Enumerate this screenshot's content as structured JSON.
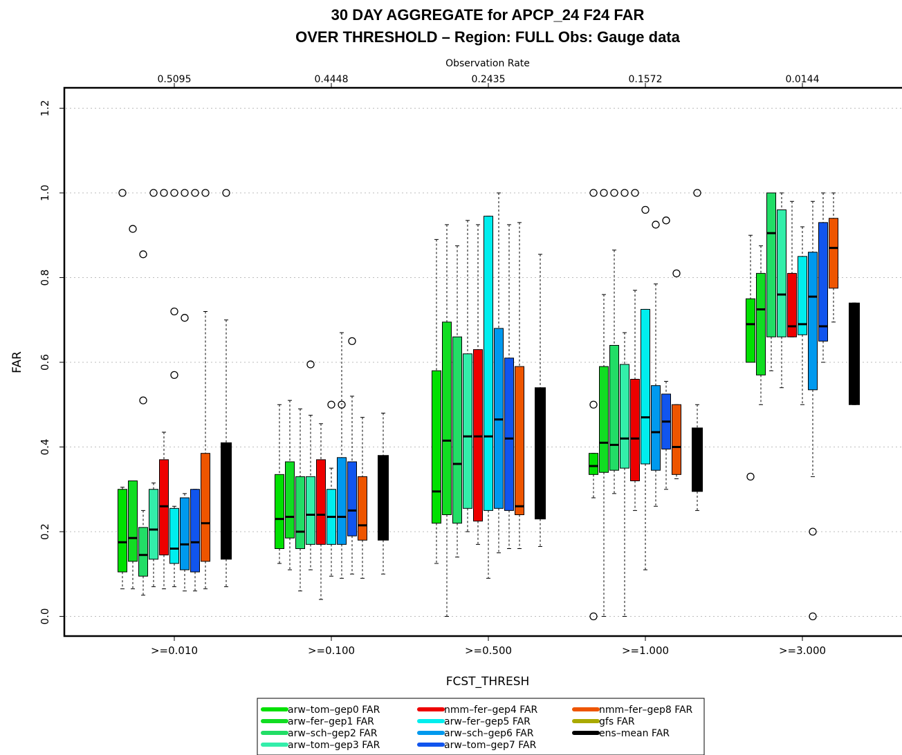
{
  "chart_data": {
    "type": "box",
    "title_line1": "30 DAY AGGREGATE for APCP_24 F24 FAR",
    "title_line2": "OVER THRESHOLD – Region: FULL Obs: Gauge data",
    "xlabel": "FCST_THRESH",
    "ylabel": "FAR",
    "top_axis_label": "Observation Rate",
    "ylim": [
      -0.05,
      1.25
    ],
    "yticks": [
      0.0,
      0.2,
      0.4,
      0.6,
      0.8,
      1.0,
      1.2
    ],
    "ytick_labels": [
      "0.0",
      "0.2",
      "0.4",
      "0.6",
      "0.8",
      "1.0",
      "1.2"
    ],
    "grid": true,
    "legend_position": "bottom",
    "categories": [
      ">=0.010",
      ">=0.100",
      ">=0.500",
      ">=1.000",
      ">=3.000"
    ],
    "observation_rates": [
      "0.5095",
      "0.4448",
      "0.2435",
      "0.1572",
      "0.0144"
    ],
    "series": [
      {
        "name": "arw–tom–gep0 FAR",
        "color": "#00e000",
        "boxes": [
          {
            "whisker_low": 0.065,
            "q1": 0.105,
            "median": 0.175,
            "q3": 0.3,
            "whisker_high": 0.305,
            "outliers": [
              1.0
            ]
          },
          {
            "whisker_low": 0.125,
            "q1": 0.16,
            "median": 0.23,
            "q3": 0.335,
            "whisker_high": 0.5,
            "outliers": []
          },
          {
            "whisker_low": 0.125,
            "q1": 0.22,
            "median": 0.295,
            "q3": 0.58,
            "whisker_high": 0.89,
            "outliers": []
          },
          {
            "whisker_low": 0.28,
            "q1": 0.335,
            "median": 0.355,
            "q3": 0.385,
            "whisker_high": 0.385,
            "outliers": [
              0.0,
              0.5,
              1.0
            ]
          },
          {
            "whisker_low": 0.6,
            "q1": 0.6,
            "median": 0.69,
            "q3": 0.75,
            "whisker_high": 0.9,
            "outliers": [
              0.33
            ]
          }
        ]
      },
      {
        "name": "arw–fer–gep1 FAR",
        "color": "#11dd22",
        "boxes": [
          {
            "whisker_low": 0.065,
            "q1": 0.13,
            "median": 0.185,
            "q3": 0.32,
            "whisker_high": 0.32,
            "outliers": [
              0.915
            ]
          },
          {
            "whisker_low": 0.11,
            "q1": 0.185,
            "median": 0.235,
            "q3": 0.365,
            "whisker_high": 0.51,
            "outliers": []
          },
          {
            "whisker_low": 0.0,
            "q1": 0.24,
            "median": 0.415,
            "q3": 0.695,
            "whisker_high": 0.925,
            "outliers": []
          },
          {
            "whisker_low": 0.0,
            "q1": 0.34,
            "median": 0.41,
            "q3": 0.59,
            "whisker_high": 0.76,
            "outliers": [
              1.0
            ]
          },
          {
            "whisker_low": 0.5,
            "q1": 0.57,
            "median": 0.725,
            "q3": 0.81,
            "whisker_high": 0.875,
            "outliers": []
          }
        ]
      },
      {
        "name": "arw–sch–gep2 FAR",
        "color": "#22dd66",
        "boxes": [
          {
            "whisker_low": 0.05,
            "q1": 0.095,
            "median": 0.145,
            "q3": 0.21,
            "whisker_high": 0.25,
            "outliers": [
              0.51,
              0.855
            ]
          },
          {
            "whisker_low": 0.06,
            "q1": 0.16,
            "median": 0.2,
            "q3": 0.33,
            "whisker_high": 0.49,
            "outliers": []
          },
          {
            "whisker_low": 0.14,
            "q1": 0.22,
            "median": 0.36,
            "q3": 0.66,
            "whisker_high": 0.875,
            "outliers": []
          },
          {
            "whisker_low": 0.29,
            "q1": 0.345,
            "median": 0.405,
            "q3": 0.64,
            "whisker_high": 0.865,
            "outliers": [
              1.0
            ]
          },
          {
            "whisker_low": 0.58,
            "q1": 0.66,
            "median": 0.905,
            "q3": 1.0,
            "whisker_high": 1.0,
            "outliers": []
          }
        ]
      },
      {
        "name": "arw–tom–gep3 FAR",
        "color": "#33eeaa",
        "boxes": [
          {
            "whisker_low": 0.07,
            "q1": 0.135,
            "median": 0.205,
            "q3": 0.3,
            "whisker_high": 0.315,
            "outliers": [
              1.0
            ]
          },
          {
            "whisker_low": 0.11,
            "q1": 0.17,
            "median": 0.24,
            "q3": 0.33,
            "whisker_high": 0.475,
            "outliers": [
              0.595
            ]
          },
          {
            "whisker_low": 0.2,
            "q1": 0.255,
            "median": 0.425,
            "q3": 0.62,
            "whisker_high": 0.935,
            "outliers": []
          },
          {
            "whisker_low": 0.0,
            "q1": 0.35,
            "median": 0.42,
            "q3": 0.595,
            "whisker_high": 0.67,
            "outliers": [
              1.0
            ]
          },
          {
            "whisker_low": 0.54,
            "q1": 0.66,
            "median": 0.76,
            "q3": 0.96,
            "whisker_high": 1.0,
            "outliers": []
          }
        ]
      },
      {
        "name": "nmm–fer–gep4 FAR",
        "color": "#ee0000",
        "boxes": [
          {
            "whisker_low": 0.065,
            "q1": 0.145,
            "median": 0.26,
            "q3": 0.37,
            "whisker_high": 0.435,
            "outliers": [
              1.0
            ]
          },
          {
            "whisker_low": 0.04,
            "q1": 0.17,
            "median": 0.24,
            "q3": 0.37,
            "whisker_high": 0.455,
            "outliers": []
          },
          {
            "whisker_low": 0.17,
            "q1": 0.225,
            "median": 0.425,
            "q3": 0.63,
            "whisker_high": 0.925,
            "outliers": []
          },
          {
            "whisker_low": 0.25,
            "q1": 0.32,
            "median": 0.42,
            "q3": 0.56,
            "whisker_high": 0.77,
            "outliers": [
              1.0
            ]
          },
          {
            "whisker_low": 0.66,
            "q1": 0.66,
            "median": 0.685,
            "q3": 0.81,
            "whisker_high": 0.98,
            "outliers": []
          }
        ]
      },
      {
        "name": "arw–fer–gep5 FAR",
        "color": "#00eeee",
        "boxes": [
          {
            "whisker_low": 0.07,
            "q1": 0.125,
            "median": 0.16,
            "q3": 0.255,
            "whisker_high": 0.26,
            "outliers": [
              0.57,
              0.72,
              1.0
            ]
          },
          {
            "whisker_low": 0.095,
            "q1": 0.17,
            "median": 0.235,
            "q3": 0.3,
            "whisker_high": 0.35,
            "outliers": [
              0.5
            ]
          },
          {
            "whisker_low": 0.09,
            "q1": 0.25,
            "median": 0.425,
            "q3": 0.945,
            "whisker_high": 0.945,
            "outliers": []
          },
          {
            "whisker_low": 0.11,
            "q1": 0.36,
            "median": 0.47,
            "q3": 0.725,
            "whisker_high": 0.725,
            "outliers": [
              0.96
            ]
          },
          {
            "whisker_low": 0.5,
            "q1": 0.665,
            "median": 0.69,
            "q3": 0.85,
            "whisker_high": 0.92,
            "outliers": []
          }
        ]
      },
      {
        "name": "arw–sch–gep6 FAR",
        "color": "#0099ee",
        "boxes": [
          {
            "whisker_low": 0.06,
            "q1": 0.11,
            "median": 0.17,
            "q3": 0.28,
            "whisker_high": 0.29,
            "outliers": [
              0.705,
              1.0
            ]
          },
          {
            "whisker_low": 0.09,
            "q1": 0.17,
            "median": 0.235,
            "q3": 0.375,
            "whisker_high": 0.67,
            "outliers": [
              0.5
            ]
          },
          {
            "whisker_low": 0.15,
            "q1": 0.255,
            "median": 0.465,
            "q3": 0.68,
            "whisker_high": 1.0,
            "outliers": []
          },
          {
            "whisker_low": 0.26,
            "q1": 0.345,
            "median": 0.435,
            "q3": 0.545,
            "whisker_high": 0.785,
            "outliers": [
              0.925
            ]
          },
          {
            "whisker_low": 0.33,
            "q1": 0.535,
            "median": 0.755,
            "q3": 0.86,
            "whisker_high": 0.98,
            "outliers": [
              0.0,
              0.2
            ]
          }
        ]
      },
      {
        "name": "arw–tom–gep7 FAR",
        "color": "#1155ee",
        "boxes": [
          {
            "whisker_low": 0.06,
            "q1": 0.105,
            "median": 0.175,
            "q3": 0.3,
            "whisker_high": 0.3,
            "outliers": [
              1.0
            ]
          },
          {
            "whisker_low": 0.1,
            "q1": 0.19,
            "median": 0.25,
            "q3": 0.365,
            "whisker_high": 0.52,
            "outliers": [
              0.65
            ]
          },
          {
            "whisker_low": 0.16,
            "q1": 0.25,
            "median": 0.42,
            "q3": 0.61,
            "whisker_high": 0.925,
            "outliers": []
          },
          {
            "whisker_low": 0.3,
            "q1": 0.395,
            "median": 0.46,
            "q3": 0.525,
            "whisker_high": 0.555,
            "outliers": [
              0.935
            ]
          },
          {
            "whisker_low": 0.6,
            "q1": 0.65,
            "median": 0.685,
            "q3": 0.93,
            "whisker_high": 1.0,
            "outliers": []
          }
        ]
      },
      {
        "name": "nmm–fer–gep8 FAR",
        "color": "#ee5500",
        "boxes": [
          {
            "whisker_low": 0.065,
            "q1": 0.13,
            "median": 0.22,
            "q3": 0.385,
            "whisker_high": 0.72,
            "outliers": [
              1.0
            ]
          },
          {
            "whisker_low": 0.09,
            "q1": 0.18,
            "median": 0.215,
            "q3": 0.33,
            "whisker_high": 0.47,
            "outliers": []
          },
          {
            "whisker_low": 0.16,
            "q1": 0.24,
            "median": 0.26,
            "q3": 0.59,
            "whisker_high": 0.93,
            "outliers": []
          },
          {
            "whisker_low": 0.325,
            "q1": 0.335,
            "median": 0.4,
            "q3": 0.5,
            "whisker_high": 0.5,
            "outliers": [
              0.81
            ]
          },
          {
            "whisker_low": 0.695,
            "q1": 0.775,
            "median": 0.87,
            "q3": 0.94,
            "whisker_high": 1.0,
            "outliers": []
          }
        ]
      },
      {
        "name": "gfs FAR",
        "color": "#aaaa00",
        "boxes": []
      },
      {
        "name": "ens–mean FAR",
        "color": "#000000",
        "boxes": [
          {
            "whisker_low": 0.07,
            "q1": 0.135,
            "median": 0.27,
            "q3": 0.41,
            "whisker_high": 0.7,
            "outliers": [
              1.0
            ]
          },
          {
            "whisker_low": 0.1,
            "q1": 0.18,
            "median": 0.28,
            "q3": 0.38,
            "whisker_high": 0.48,
            "outliers": []
          },
          {
            "whisker_low": 0.165,
            "q1": 0.23,
            "median": 0.39,
            "q3": 0.54,
            "whisker_high": 0.855,
            "outliers": []
          },
          {
            "whisker_low": 0.25,
            "q1": 0.295,
            "median": 0.37,
            "q3": 0.445,
            "whisker_high": 0.5,
            "outliers": [
              1.0
            ]
          },
          {
            "whisker_low": 0.5,
            "q1": 0.5,
            "median": 0.62,
            "q3": 0.74,
            "whisker_high": 0.74,
            "outliers": []
          }
        ]
      }
    ]
  }
}
